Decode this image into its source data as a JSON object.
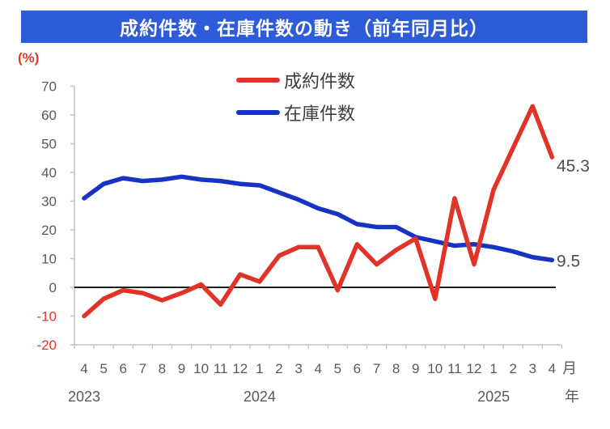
{
  "title": "成約件数・在庫件数の動き（前年同月比）",
  "colors": {
    "title_bar": "#2e5bd7",
    "contracts_red": "#e13327",
    "inventory_blue": "#1733c4",
    "negative_text": "#e8362a",
    "axis_text": "#595959",
    "end_label_text": "#4d4d4d",
    "axis_line": "#c2c2c2",
    "zero_line": "#000000"
  },
  "y_axis": {
    "unit": "(%)",
    "ticks": [
      70,
      60,
      50,
      40,
      30,
      20,
      10,
      0,
      -10,
      -20
    ]
  },
  "x_axis": {
    "month_unit": "月",
    "year_unit": "年",
    "years": [
      {
        "label": "2023",
        "month_index": 0
      },
      {
        "label": "2024",
        "month_index": 9
      },
      {
        "label": "2025",
        "month_index": 21
      }
    ]
  },
  "chart_data": {
    "type": "line",
    "title": "成約件数・在庫件数の動き（前年同月比）",
    "ylabel": "(%)",
    "ylim": [
      -20,
      70
    ],
    "y_ticks": [
      70,
      60,
      50,
      40,
      30,
      20,
      10,
      0,
      -10,
      -20
    ],
    "zero_line": true,
    "legend_position": "top-center",
    "x_tick_labels": [
      "4",
      "5",
      "6",
      "7",
      "8",
      "9",
      "10",
      "11",
      "12",
      "1",
      "2",
      "3",
      "4",
      "5",
      "6",
      "7",
      "8",
      "9",
      "10",
      "11",
      "12",
      "1",
      "2",
      "3",
      "4"
    ],
    "categories": [
      "2023-04",
      "2023-05",
      "2023-06",
      "2023-07",
      "2023-08",
      "2023-09",
      "2023-10",
      "2023-11",
      "2023-12",
      "2024-01",
      "2024-02",
      "2024-03",
      "2024-04",
      "2024-05",
      "2024-06",
      "2024-07",
      "2024-08",
      "2024-09",
      "2024-10",
      "2024-11",
      "2024-12",
      "2025-01",
      "2025-02",
      "2025-03",
      "2025-04"
    ],
    "series": [
      {
        "id": "contracts",
        "name": "成約件数",
        "color": "#e13327",
        "end_label": "45.3",
        "values": [
          -10,
          -4,
          -1,
          -2,
          -4.5,
          -2,
          1,
          -6,
          4.5,
          2,
          11,
          14,
          14,
          -1,
          15,
          8,
          13,
          17,
          -4,
          31,
          8,
          34,
          48.5,
          63,
          45.3
        ]
      },
      {
        "id": "inventory",
        "name": "在庫件数",
        "color": "#1733c4",
        "end_label": "9.5",
        "values": [
          31,
          36,
          38,
          37,
          37.5,
          38.5,
          37.5,
          37,
          36,
          35.5,
          33,
          30.5,
          27.5,
          25.5,
          22,
          21,
          21,
          17.5,
          16,
          14.5,
          15,
          14,
          12.5,
          10.5,
          9.5
        ]
      }
    ]
  }
}
